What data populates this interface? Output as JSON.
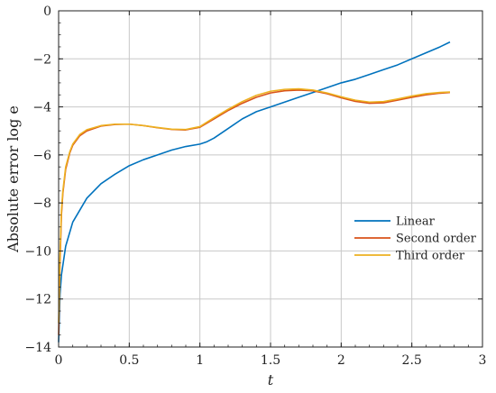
{
  "chart_data": {
    "type": "line",
    "xlabel": "t",
    "ylabel": "Absolute error log e",
    "xlim": [
      0,
      3
    ],
    "ylim": [
      -14,
      0
    ],
    "xticks": [
      0,
      0.5,
      1,
      1.5,
      2,
      2.5,
      3
    ],
    "xtick_labels": [
      "0",
      "0.5",
      "1",
      "1.5",
      "2",
      "2.5",
      "3"
    ],
    "yticks": [
      0,
      -2,
      -4,
      -6,
      -8,
      -10,
      -12,
      -14
    ],
    "ytick_labels": [
      "0",
      "−2",
      "−4",
      "−6",
      "−8",
      "−10",
      "−12",
      "−14"
    ],
    "grid": true,
    "legend_position": "center-right",
    "series": [
      {
        "name": "Linear",
        "color": "#0072BD",
        "x": [
          0,
          0.01,
          0.02,
          0.05,
          0.1,
          0.2,
          0.3,
          0.4,
          0.5,
          0.6,
          0.7,
          0.8,
          0.9,
          1.0,
          1.05,
          1.1,
          1.2,
          1.3,
          1.4,
          1.5,
          1.6,
          1.7,
          1.8,
          1.9,
          2.0,
          2.1,
          2.2,
          2.3,
          2.4,
          2.5,
          2.6,
          2.7,
          2.77
        ],
        "y": [
          -13.8,
          -11.8,
          -11.0,
          -9.8,
          -8.8,
          -7.8,
          -7.2,
          -6.8,
          -6.45,
          -6.2,
          -6.0,
          -5.8,
          -5.65,
          -5.55,
          -5.45,
          -5.3,
          -4.9,
          -4.5,
          -4.2,
          -4.0,
          -3.8,
          -3.6,
          -3.4,
          -3.2,
          -3.0,
          -2.85,
          -2.65,
          -2.45,
          -2.25,
          -2.0,
          -1.75,
          -1.5,
          -1.3
        ]
      },
      {
        "name": "Second order",
        "color": "#D95319",
        "x": [
          0,
          0.01,
          0.02,
          0.03,
          0.05,
          0.08,
          0.1,
          0.15,
          0.2,
          0.3,
          0.4,
          0.5,
          0.6,
          0.7,
          0.8,
          0.9,
          1.0,
          1.1,
          1.2,
          1.3,
          1.4,
          1.5,
          1.6,
          1.7,
          1.8,
          1.9,
          2.0,
          2.1,
          2.2,
          2.3,
          2.4,
          2.5,
          2.6,
          2.7,
          2.77
        ],
        "y": [
          -13.5,
          -10.5,
          -8.5,
          -7.6,
          -6.6,
          -5.9,
          -5.6,
          -5.2,
          -5.0,
          -4.8,
          -4.73,
          -4.72,
          -4.78,
          -4.87,
          -4.94,
          -4.96,
          -4.85,
          -4.5,
          -4.15,
          -3.85,
          -3.6,
          -3.42,
          -3.33,
          -3.3,
          -3.33,
          -3.45,
          -3.62,
          -3.77,
          -3.85,
          -3.83,
          -3.72,
          -3.6,
          -3.5,
          -3.43,
          -3.4
        ]
      },
      {
        "name": "Third order",
        "color": "#EDB120",
        "x": [
          0,
          0.01,
          0.02,
          0.03,
          0.05,
          0.08,
          0.1,
          0.15,
          0.2,
          0.3,
          0.4,
          0.5,
          0.6,
          0.7,
          0.8,
          0.9,
          1.0,
          1.1,
          1.2,
          1.3,
          1.4,
          1.5,
          1.6,
          1.7,
          1.8,
          1.9,
          2.0,
          2.1,
          2.2,
          2.3,
          2.4,
          2.5,
          2.6,
          2.7,
          2.77
        ],
        "y": [
          -13.0,
          -10.2,
          -8.3,
          -7.5,
          -6.5,
          -5.85,
          -5.55,
          -5.15,
          -4.95,
          -4.78,
          -4.72,
          -4.72,
          -4.78,
          -4.86,
          -4.93,
          -4.94,
          -4.82,
          -4.45,
          -4.1,
          -3.78,
          -3.52,
          -3.35,
          -3.27,
          -3.25,
          -3.3,
          -3.42,
          -3.58,
          -3.72,
          -3.8,
          -3.78,
          -3.67,
          -3.55,
          -3.45,
          -3.4,
          -3.38
        ]
      }
    ]
  }
}
